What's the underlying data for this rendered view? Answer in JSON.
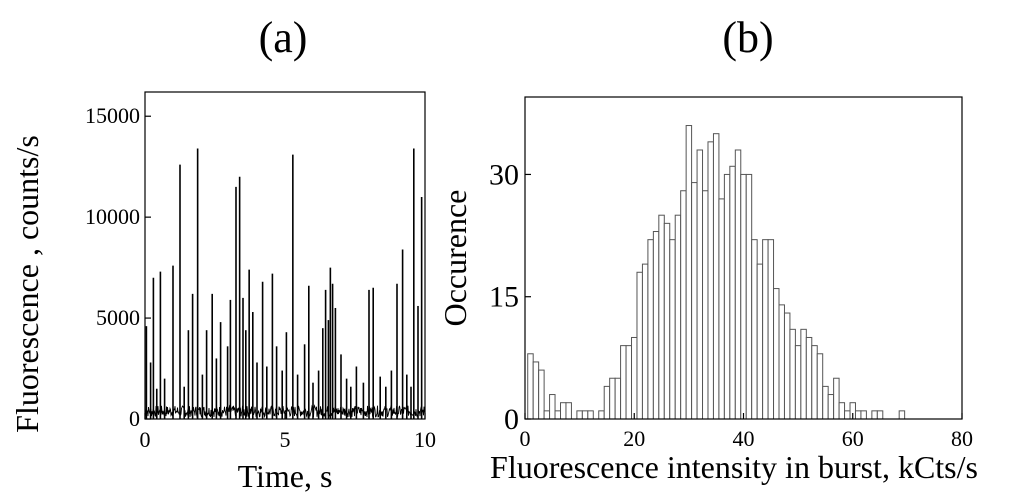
{
  "chart_data": [
    {
      "type": "line",
      "panel_label": "(a)",
      "xlabel": "Time, s",
      "ylabel": "Fluorescence , counts/s",
      "xlim": [
        0,
        10
      ],
      "ylim": [
        0,
        16200
      ],
      "x_ticks": [
        0,
        5,
        10
      ],
      "y_ticks": [
        0,
        5000,
        10000,
        15000
      ],
      "grid": false,
      "baseline_level": 400,
      "spikes": [
        {
          "t": 0.05,
          "v": 4600
        },
        {
          "t": 0.2,
          "v": 2800
        },
        {
          "t": 0.3,
          "v": 7000
        },
        {
          "t": 0.42,
          "v": 1500
        },
        {
          "t": 0.55,
          "v": 7300
        },
        {
          "t": 0.7,
          "v": 2000
        },
        {
          "t": 1.0,
          "v": 7600
        },
        {
          "t": 1.25,
          "v": 12600
        },
        {
          "t": 1.4,
          "v": 1600
        },
        {
          "t": 1.55,
          "v": 4400
        },
        {
          "t": 1.7,
          "v": 6200
        },
        {
          "t": 1.88,
          "v": 13400
        },
        {
          "t": 2.05,
          "v": 2200
        },
        {
          "t": 2.2,
          "v": 4400
        },
        {
          "t": 2.4,
          "v": 6200
        },
        {
          "t": 2.55,
          "v": 3000
        },
        {
          "t": 2.7,
          "v": 4800
        },
        {
          "t": 2.95,
          "v": 3600
        },
        {
          "t": 3.05,
          "v": 5900
        },
        {
          "t": 3.25,
          "v": 11500
        },
        {
          "t": 3.38,
          "v": 12000
        },
        {
          "t": 3.5,
          "v": 6000
        },
        {
          "t": 3.6,
          "v": 4400
        },
        {
          "t": 3.72,
          "v": 7400
        },
        {
          "t": 3.85,
          "v": 5300
        },
        {
          "t": 4.0,
          "v": 2800
        },
        {
          "t": 4.2,
          "v": 6800
        },
        {
          "t": 4.35,
          "v": 2600
        },
        {
          "t": 4.55,
          "v": 7200
        },
        {
          "t": 4.7,
          "v": 3600
        },
        {
          "t": 4.9,
          "v": 2400
        },
        {
          "t": 5.05,
          "v": 4300
        },
        {
          "t": 5.28,
          "v": 13100
        },
        {
          "t": 5.45,
          "v": 2200
        },
        {
          "t": 5.7,
          "v": 3700
        },
        {
          "t": 5.85,
          "v": 6600
        },
        {
          "t": 6.0,
          "v": 1800
        },
        {
          "t": 6.2,
          "v": 2400
        },
        {
          "t": 6.35,
          "v": 4500
        },
        {
          "t": 6.45,
          "v": 6400
        },
        {
          "t": 6.55,
          "v": 4900
        },
        {
          "t": 6.62,
          "v": 7500
        },
        {
          "t": 6.7,
          "v": 6700
        },
        {
          "t": 6.8,
          "v": 5500
        },
        {
          "t": 7.0,
          "v": 3200
        },
        {
          "t": 7.2,
          "v": 2000
        },
        {
          "t": 7.35,
          "v": 1600
        },
        {
          "t": 7.55,
          "v": 2600
        },
        {
          "t": 7.8,
          "v": 1800
        },
        {
          "t": 8.0,
          "v": 6400
        },
        {
          "t": 8.15,
          "v": 6500
        },
        {
          "t": 8.4,
          "v": 2100
        },
        {
          "t": 8.6,
          "v": 1600
        },
        {
          "t": 8.8,
          "v": 2400
        },
        {
          "t": 9.0,
          "v": 6700
        },
        {
          "t": 9.2,
          "v": 8400
        },
        {
          "t": 9.35,
          "v": 2200
        },
        {
          "t": 9.5,
          "v": 1600
        },
        {
          "t": 9.6,
          "v": 13400
        },
        {
          "t": 9.75,
          "v": 5600
        },
        {
          "t": 9.88,
          "v": 11000
        }
      ]
    },
    {
      "type": "bar",
      "panel_label": "(b)",
      "xlabel": "Fluorescence intensity in burst, kCts/s",
      "ylabel": "Occurence",
      "xlim": [
        0,
        80
      ],
      "ylim": [
        0,
        39.5
      ],
      "x_ticks": [
        0,
        20,
        40,
        60,
        80
      ],
      "y_ticks": [
        0,
        15,
        30
      ],
      "grid": false,
      "bin_width": 1,
      "x": [
        1,
        2,
        3,
        4,
        5,
        6,
        7,
        8,
        9,
        10,
        11,
        12,
        13,
        14,
        15,
        16,
        17,
        18,
        19,
        20,
        21,
        22,
        23,
        24,
        25,
        26,
        27,
        28,
        29,
        30,
        31,
        32,
        33,
        34,
        35,
        36,
        37,
        38,
        39,
        40,
        41,
        42,
        43,
        44,
        45,
        46,
        47,
        48,
        49,
        50,
        51,
        52,
        53,
        54,
        55,
        56,
        57,
        58,
        59,
        60,
        61,
        62,
        63,
        64,
        65,
        66,
        67,
        68,
        69,
        70
      ],
      "values": [
        8,
        7,
        6,
        1,
        3,
        1,
        2,
        2,
        0,
        1,
        1,
        1,
        0,
        1,
        4,
        5,
        5,
        9,
        9,
        10,
        18,
        19,
        22,
        23,
        25,
        24,
        22,
        25,
        28,
        36,
        29,
        33,
        28,
        34,
        35,
        27,
        30,
        31,
        33,
        30,
        30,
        22,
        19,
        22,
        22,
        16,
        14,
        13,
        11,
        9,
        11,
        10,
        9,
        8,
        4,
        3,
        5,
        2,
        1,
        2,
        1,
        1,
        0,
        1,
        1,
        0,
        0,
        0,
        1,
        0
      ]
    }
  ]
}
